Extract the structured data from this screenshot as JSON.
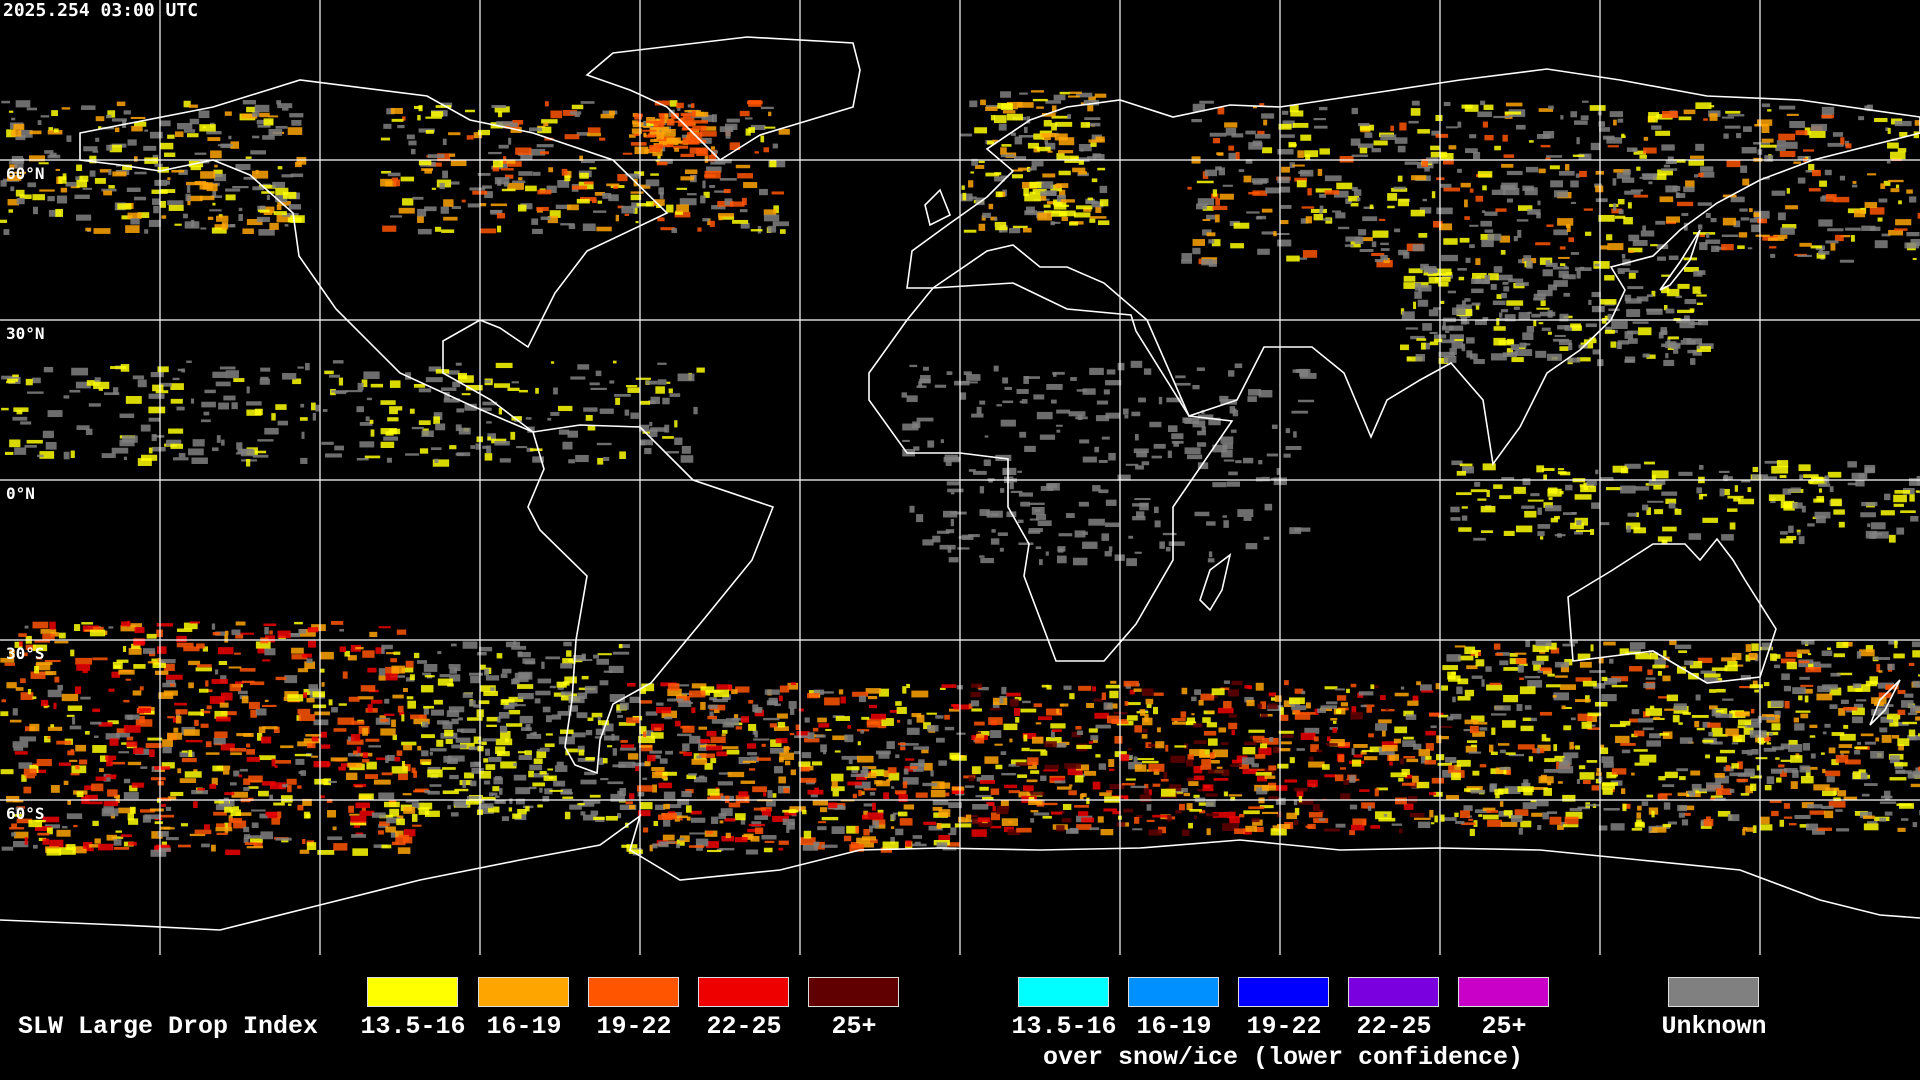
{
  "timestamp": "2025.254 03:00 UTC",
  "lat_labels": [
    "60°N",
    "30°N",
    "0°N",
    "30°S",
    "60°S"
  ],
  "legend": {
    "title": "SLW Large Drop Index",
    "normal": [
      {
        "label": "13.5-16",
        "color": "#ffff00"
      },
      {
        "label": "16-19",
        "color": "#ffa500"
      },
      {
        "label": "19-22",
        "color": "#ff5500"
      },
      {
        "label": "22-25",
        "color": "#ee0000"
      },
      {
        "label": "25+",
        "color": "#600000"
      }
    ],
    "snow_ice": [
      {
        "label": "13.5-16",
        "color": "#00ffff"
      },
      {
        "label": "16-19",
        "color": "#0090ff"
      },
      {
        "label": "19-22",
        "color": "#0000ff"
      },
      {
        "label": "22-25",
        "color": "#7a00e0"
      },
      {
        "label": "25+",
        "color": "#c800c8"
      }
    ],
    "snow_ice_caption": "over snow/ice (lower confidence)",
    "unknown": {
      "label": "Unknown",
      "color": "#808080"
    }
  }
}
